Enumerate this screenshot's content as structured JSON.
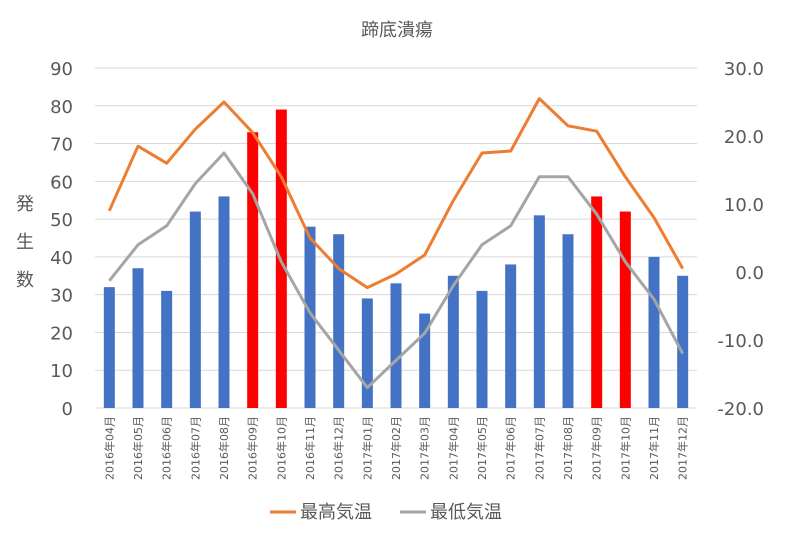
{
  "chart_data": {
    "type": "bar",
    "title": "蹄底潰瘍",
    "ylabel": "発生数",
    "categories": [
      "2016年04月",
      "2016年05月",
      "2016年06月",
      "2016年07月",
      "2016年08月",
      "2016年09月",
      "2016年10月",
      "2016年11月",
      "2016年12月",
      "2017年01月",
      "2017年02月",
      "2017年03月",
      "2017年04月",
      "2017年05月",
      "2017年06月",
      "2017年07月",
      "2017年08月",
      "2017年09月",
      "2017年10月",
      "2017年11月",
      "2017年12月"
    ],
    "bars": {
      "values": [
        32,
        37,
        31,
        52,
        56,
        73,
        79,
        48,
        46,
        29,
        33,
        25,
        35,
        31,
        38,
        51,
        46,
        56,
        52,
        40,
        35
      ],
      "colors": [
        "#4472c4",
        "#4472c4",
        "#4472c4",
        "#4472c4",
        "#4472c4",
        "#ff0000",
        "#ff0000",
        "#4472c4",
        "#4472c4",
        "#4472c4",
        "#4472c4",
        "#4472c4",
        "#4472c4",
        "#4472c4",
        "#4472c4",
        "#4472c4",
        "#4472c4",
        "#ff0000",
        "#ff0000",
        "#4472c4",
        "#4472c4"
      ]
    },
    "series": [
      {
        "name": "最高気温",
        "color": "#ed7d31",
        "axis": "right",
        "values": [
          9.0,
          18.5,
          16.0,
          21.0,
          25.0,
          20.5,
          14.0,
          5.0,
          0.5,
          -2.3,
          -0.3,
          2.5,
          10.5,
          17.5,
          17.8,
          25.5,
          21.5,
          20.7,
          14.0,
          8.0,
          0.5
        ]
      },
      {
        "name": "最低気温",
        "color": "#a5a5a5",
        "axis": "right",
        "values": [
          -1.3,
          4.0,
          6.8,
          13.0,
          17.5,
          11.5,
          1.5,
          -6.0,
          -11.5,
          -17.0,
          -13.0,
          -9.0,
          -2.0,
          4.0,
          6.8,
          14.0,
          14.0,
          8.5,
          1.5,
          -4.0,
          -12.0
        ]
      }
    ],
    "ylim": [
      0,
      90
    ],
    "yticks": [
      "0",
      "10",
      "20",
      "30",
      "40",
      "50",
      "60",
      "70",
      "80",
      "90"
    ],
    "y2lim": [
      -20,
      30
    ],
    "y2ticks": [
      "-20.0",
      "-10.0",
      "0.0",
      "10.0",
      "20.0",
      "30.0"
    ],
    "grid": true,
    "legend_position": "bottom"
  }
}
